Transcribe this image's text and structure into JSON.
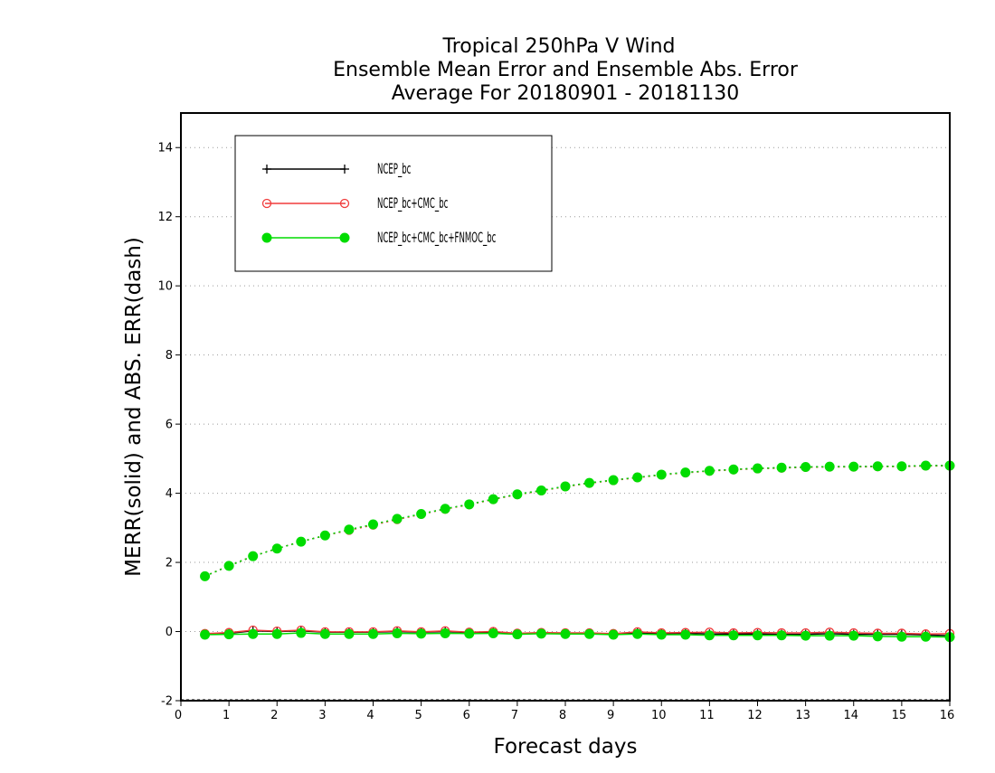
{
  "chart_data": {
    "type": "line",
    "title_lines": [
      "Tropical 250hPa V Wind",
      "Ensemble Mean Error and Ensemble Abs. Error",
      "Average For 20180901 - 20181130"
    ],
    "xlabel": "Forecast days",
    "ylabel": "MERR(solid) and ABS. ERR(dash)",
    "xlim": [
      0,
      16
    ],
    "ylim": [
      -2,
      15
    ],
    "xticks": [
      "0",
      "1",
      "2",
      "3",
      "4",
      "5",
      "6",
      "7",
      "8",
      "9",
      "10",
      "11",
      "12",
      "13",
      "14",
      "15",
      "16"
    ],
    "yticks": [
      "-2",
      "0",
      "2",
      "4",
      "6",
      "8",
      "10",
      "12",
      "14"
    ],
    "grid": "horizontal dotted",
    "legend_position": "top-left",
    "x": [
      0.5,
      1,
      1.5,
      2,
      2.5,
      3,
      3.5,
      4,
      4.5,
      5,
      5.5,
      6,
      6.5,
      7,
      7.5,
      8,
      8.5,
      9,
      9.5,
      10,
      10.5,
      11,
      11.5,
      12,
      12.5,
      13,
      13.5,
      14,
      14.5,
      15,
      15.5,
      16
    ],
    "series": [
      {
        "name": "NCEP_bc",
        "color": "#000000",
        "marker": "plus",
        "merr": [
          -0.08,
          -0.05,
          0.02,
          0.0,
          0.02,
          -0.02,
          -0.02,
          -0.02,
          0.0,
          -0.02,
          0.0,
          -0.03,
          -0.02,
          -0.06,
          -0.04,
          -0.05,
          -0.05,
          -0.07,
          -0.04,
          -0.06,
          -0.05,
          -0.07,
          -0.07,
          -0.07,
          -0.08,
          -0.08,
          -0.06,
          -0.08,
          -0.08,
          -0.08,
          -0.1,
          -0.12
        ],
        "abs_err": [
          1.6,
          1.9,
          2.18,
          2.4,
          2.6,
          2.78,
          2.94,
          3.1,
          3.25,
          3.4,
          3.55,
          3.68,
          3.83,
          3.97,
          4.08,
          4.2,
          4.3,
          4.38,
          4.46,
          4.54,
          4.6,
          4.65,
          4.69,
          4.72,
          4.74,
          4.76,
          4.77,
          4.77,
          4.78,
          4.78,
          4.8,
          4.8
        ]
      },
      {
        "name": "NCEP_bc+CMC_bc",
        "color": "#f03c3c",
        "marker": "open-circle",
        "merr": [
          -0.06,
          -0.03,
          0.04,
          0.01,
          0.04,
          -0.01,
          -0.01,
          -0.01,
          0.02,
          -0.01,
          0.02,
          -0.02,
          0.0,
          -0.05,
          -0.03,
          -0.04,
          -0.04,
          -0.06,
          -0.01,
          -0.04,
          -0.03,
          -0.02,
          -0.04,
          -0.03,
          -0.04,
          -0.04,
          -0.02,
          -0.04,
          -0.05,
          -0.05,
          -0.07,
          -0.06
        ],
        "abs_err": [
          1.6,
          1.9,
          2.18,
          2.4,
          2.6,
          2.78,
          2.93,
          3.08,
          3.24,
          3.39,
          3.54,
          3.67,
          3.82,
          3.96,
          4.07,
          4.19,
          4.29,
          4.37,
          4.45,
          4.53,
          4.59,
          4.64,
          4.68,
          4.71,
          4.73,
          4.75,
          4.76,
          4.76,
          4.77,
          4.77,
          4.79,
          4.79
        ]
      },
      {
        "name": "NCEP_bc+CMC_bc+FNMOC_bc",
        "color": "#00dc00",
        "marker": "filled-circle",
        "merr": [
          -0.09,
          -0.08,
          -0.07,
          -0.07,
          -0.04,
          -0.07,
          -0.07,
          -0.07,
          -0.05,
          -0.06,
          -0.05,
          -0.06,
          -0.05,
          -0.08,
          -0.06,
          -0.07,
          -0.07,
          -0.09,
          -0.07,
          -0.09,
          -0.09,
          -0.11,
          -0.11,
          -0.11,
          -0.11,
          -0.12,
          -0.12,
          -0.12,
          -0.14,
          -0.15,
          -0.15,
          -0.16
        ],
        "abs_err": [
          1.6,
          1.9,
          2.18,
          2.4,
          2.6,
          2.78,
          2.95,
          3.1,
          3.26,
          3.4,
          3.55,
          3.68,
          3.83,
          3.97,
          4.08,
          4.2,
          4.3,
          4.38,
          4.46,
          4.54,
          4.6,
          4.65,
          4.69,
          4.72,
          4.74,
          4.76,
          4.77,
          4.77,
          4.78,
          4.78,
          4.8,
          4.8
        ]
      }
    ]
  }
}
